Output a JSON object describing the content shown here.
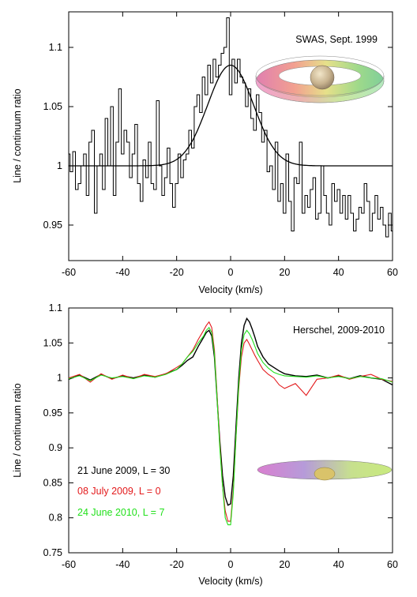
{
  "chart_data": [
    {
      "type": "line",
      "title": "SWAS, Sept. 1999",
      "xlabel": "Velocity (km/s)",
      "ylabel": "Line / continuum ratio",
      "xlim": [
        -60,
        60
      ],
      "ylim": [
        0.92,
        1.13
      ],
      "xticks": [
        -60,
        -40,
        -20,
        0,
        20,
        40,
        60
      ],
      "xtick_labels": [
        "-60",
        "-40",
        "-20",
        "0",
        "20",
        "40",
        "60"
      ],
      "yticks": [
        0.95,
        1.0,
        1.05,
        1.1
      ],
      "ytick_labels": [
        "0.95",
        "1",
        "1.05",
        "1.1"
      ],
      "grid": false,
      "inset": "torus-model",
      "series": [
        {
          "style": "step",
          "color": "#000000",
          "x": [
            -60,
            -59,
            -58,
            -57,
            -56,
            -55,
            -54,
            -53,
            -52,
            -51,
            -50,
            -49,
            -48,
            -47,
            -46,
            -45,
            -44,
            -43,
            -42,
            -41,
            -40,
            -39,
            -38,
            -37,
            -36,
            -35,
            -34,
            -33,
            -32,
            -31,
            -30,
            -29,
            -28,
            -27,
            -26,
            -25,
            -24,
            -23,
            -22,
            -21,
            -20,
            -19,
            -18,
            -17,
            -16,
            -15,
            -14,
            -13,
            -12,
            -11,
            -10,
            -9,
            -8,
            -7,
            -6,
            -5,
            -4,
            -3,
            -2,
            -1,
            0,
            1,
            2,
            3,
            4,
            5,
            6,
            7,
            8,
            9,
            10,
            11,
            12,
            13,
            14,
            15,
            16,
            17,
            18,
            19,
            20,
            21,
            22,
            23,
            24,
            25,
            26,
            27,
            28,
            29,
            30,
            31,
            32,
            33,
            34,
            35,
            36,
            37,
            38,
            39,
            40,
            41,
            42,
            43,
            44,
            45,
            46,
            47,
            48,
            49,
            50,
            51,
            52,
            53,
            54,
            55,
            56,
            57,
            58,
            59,
            60
          ],
          "y": [
            1.01,
            0.995,
            1.012,
            0.98,
            0.985,
            1.0,
            1.01,
            0.975,
            1.02,
            1.03,
            0.96,
            1.0,
            1.01,
            0.98,
            1.04,
            1.0,
            1.05,
            0.975,
            1.02,
            1.065,
            1.01,
            1.03,
            1.02,
            0.99,
            1.01,
            1.035,
            0.985,
            0.97,
            1.005,
            0.99,
            1.02,
            0.985,
            0.98,
            1.055,
            1.0,
            0.975,
            0.99,
            1.015,
            0.985,
            0.965,
            0.985,
            1.01,
            0.99,
            1.005,
            1.01,
            1.03,
            1.015,
            1.05,
            1.06,
            1.045,
            1.075,
            1.06,
            1.085,
            1.07,
            1.09,
            1.075,
            1.085,
            1.095,
            1.1,
            1.125,
            1.06,
            1.09,
            1.07,
            1.09,
            1.075,
            1.07,
            1.05,
            1.065,
            1.04,
            1.03,
            1.06,
            1.045,
            1.02,
            1.03,
            0.995,
            1.0,
            0.98,
            1.02,
            0.97,
            0.985,
            0.96,
            1.01,
            0.97,
            0.945,
            0.99,
            0.985,
            1.02,
            0.96,
            0.975,
            0.965,
            0.98,
            0.99,
            0.955,
            0.96,
            1.0,
            0.975,
            0.96,
            0.95,
            0.985,
            0.97,
            0.98,
            0.96,
            0.975,
            0.955,
            0.975,
            0.96,
            0.945,
            0.955,
            0.965,
            0.96,
            0.985,
            0.97,
            0.945,
            0.96,
            0.975,
            0.955,
            0.965,
            0.95,
            0.94,
            0.96,
            0.945
          ]
        },
        {
          "style": "line",
          "color": "#000000",
          "model": "gaussian",
          "baseline": 1.0,
          "amplitude": 0.085,
          "center": 0,
          "sigma": 8.5
        }
      ]
    },
    {
      "type": "line",
      "title": "Herschel, 2009-2010",
      "xlabel": "Velocity (km/s)",
      "ylabel": "Line / continuum ratio",
      "xlim": [
        -60,
        60
      ],
      "ylim": [
        0.75,
        1.1
      ],
      "xticks": [
        -60,
        -40,
        -20,
        0,
        20,
        40,
        60
      ],
      "xtick_labels": [
        "-60",
        "-40",
        "-20",
        "0",
        "20",
        "40",
        "60"
      ],
      "yticks": [
        0.75,
        0.8,
        0.85,
        0.9,
        0.95,
        1.0,
        1.05,
        1.1
      ],
      "ytick_labels": [
        "0.75",
        "0.8",
        "0.85",
        "0.9",
        "0.95",
        "1",
        "1.05",
        "1.1"
      ],
      "grid": false,
      "legend_position": "bottom-left",
      "inset": "flat-disk-model",
      "x": [
        -60,
        -56,
        -52,
        -48,
        -44,
        -40,
        -36,
        -32,
        -28,
        -24,
        -20,
        -18,
        -16,
        -14,
        -12,
        -10,
        -9,
        -8,
        -7,
        -6,
        -5,
        -4,
        -3,
        -2,
        -1,
        0,
        1,
        2,
        3,
        4,
        5,
        6,
        7,
        8,
        9,
        10,
        12,
        14,
        16,
        18,
        20,
        24,
        28,
        32,
        36,
        40,
        44,
        48,
        52,
        56,
        60
      ],
      "series": [
        {
          "name": "21 June 2009, L = 30",
          "color": "#000000",
          "y": [
            0.998,
            1.004,
            0.997,
            1.005,
            0.999,
            1.003,
            1.0,
            1.004,
            1.001,
            1.006,
            1.012,
            1.018,
            1.025,
            1.03,
            1.045,
            1.058,
            1.065,
            1.068,
            1.06,
            1.03,
            0.97,
            0.91,
            0.86,
            0.83,
            0.818,
            0.82,
            0.86,
            0.93,
            1.0,
            1.05,
            1.075,
            1.085,
            1.08,
            1.07,
            1.058,
            1.045,
            1.03,
            1.02,
            1.015,
            1.01,
            1.006,
            1.003,
            1.002,
            1.004,
            1.0,
            1.003,
            0.999,
            1.003,
            1.0,
            0.998,
            0.99
          ]
        },
        {
          "name": "08 July 2009, L = 0",
          "color": "#e31a1c",
          "y": [
            1.0,
            1.005,
            0.994,
            1.006,
            0.998,
            1.004,
            0.999,
            1.005,
            1.002,
            1.006,
            1.015,
            1.02,
            1.03,
            1.04,
            1.055,
            1.068,
            1.075,
            1.08,
            1.072,
            1.04,
            0.975,
            0.905,
            0.845,
            0.81,
            0.795,
            0.795,
            0.84,
            0.915,
            0.985,
            1.03,
            1.05,
            1.055,
            1.048,
            1.04,
            1.032,
            1.025,
            1.012,
            1.005,
            1.0,
            0.99,
            0.985,
            0.992,
            0.975,
            0.998,
            1.0,
            1.004,
            0.998,
            1.002,
            1.005,
            0.998,
            0.995
          ]
        },
        {
          "name": "24 June 2010, L = 7",
          "color": "#22e01c",
          "y": [
            0.999,
            1.003,
            0.996,
            1.004,
            1.0,
            1.002,
            0.999,
            1.003,
            1.001,
            1.005,
            1.012,
            1.02,
            1.03,
            1.038,
            1.05,
            1.06,
            1.068,
            1.072,
            1.065,
            1.035,
            0.97,
            0.9,
            0.845,
            0.8,
            0.79,
            0.79,
            0.835,
            0.915,
            0.99,
            1.04,
            1.062,
            1.068,
            1.063,
            1.055,
            1.045,
            1.035,
            1.022,
            1.014,
            1.008,
            1.005,
            1.003,
            1.002,
            1.001,
            1.003,
            1.0,
            1.002,
            0.999,
            1.002,
            1.0,
            0.999,
            0.994
          ]
        }
      ]
    }
  ]
}
